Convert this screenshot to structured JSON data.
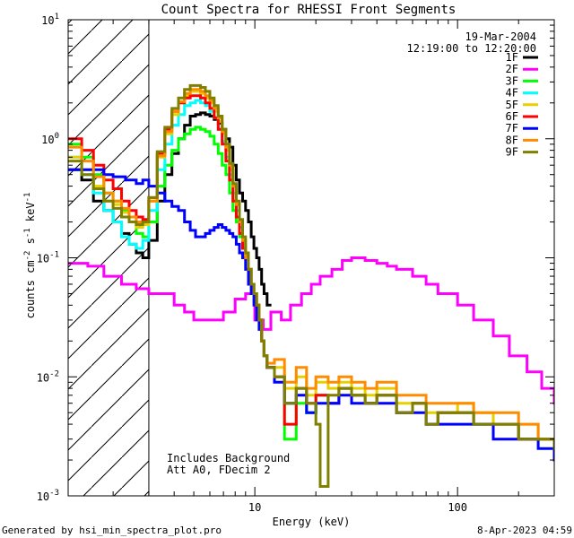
{
  "chart_data": {
    "type": "line",
    "title": "Count Spectra for RHESSI Front Segments",
    "xlabel": "Energy (keV)",
    "ylabel_parts": [
      "counts cm",
      "-2",
      " s",
      "-1",
      " keV",
      "-1"
    ],
    "x_scale": "log",
    "y_scale": "log",
    "xlim": [
      1.2,
      300
    ],
    "ylim": [
      0.001,
      10
    ],
    "x_ticks": [
      {
        "value": 10,
        "label": "10"
      },
      {
        "value": 100,
        "label": "100"
      }
    ],
    "y_ticks": [
      {
        "value": 0.001,
        "base": "10",
        "exp": "-3"
      },
      {
        "value": 0.01,
        "base": "10",
        "exp": "-2"
      },
      {
        "value": 0.1,
        "base": "10",
        "exp": "-1"
      },
      {
        "value": 1,
        "base": "10",
        "exp": "0"
      },
      {
        "value": 10,
        "base": "10",
        "exp": "1"
      }
    ],
    "attenuator_threshold_kev": 3.0,
    "date": "19-Mar-2004",
    "time_range": "12:19:00 to 12:20:00",
    "annotations": [
      "Includes Background",
      "Att A0, FDecim 2"
    ],
    "series": [
      {
        "name": "1F",
        "color": "#000000",
        "x": [
          1.2,
          1.4,
          1.6,
          1.8,
          2.0,
          2.2,
          2.4,
          2.6,
          2.8,
          3.0,
          3.3,
          3.6,
          3.9,
          4.2,
          4.5,
          4.8,
          5.1,
          5.4,
          5.7,
          6.0,
          6.3,
          6.6,
          6.9,
          7.2,
          7.5,
          7.8,
          8.1,
          8.4,
          8.7,
          9.0,
          9.3,
          9.6,
          9.9,
          10.2,
          10.5,
          10.8,
          11.1,
          11.5
        ],
        "y": [
          0.55,
          0.45,
          0.3,
          0.25,
          0.2,
          0.16,
          0.13,
          0.11,
          0.1,
          0.14,
          0.3,
          0.5,
          0.75,
          1.0,
          1.3,
          1.55,
          1.6,
          1.65,
          1.6,
          1.55,
          1.45,
          1.35,
          1.2,
          1.0,
          0.85,
          0.6,
          0.45,
          0.35,
          0.3,
          0.25,
          0.2,
          0.15,
          0.12,
          0.1,
          0.08,
          0.06,
          0.05,
          0.04
        ]
      },
      {
        "name": "2F",
        "color": "#ff00ff",
        "x": [
          1.2,
          1.5,
          1.8,
          2.2,
          2.6,
          3.0,
          3.5,
          4.0,
          4.5,
          5.0,
          5.6,
          6.3,
          7.0,
          8.0,
          9.0,
          10.0,
          11.0,
          12.0,
          13.5,
          15.0,
          17.0,
          19.0,
          21.0,
          24.0,
          27.0,
          30.0,
          35.0,
          40.0,
          45.0,
          50.0,
          60.0,
          70.0,
          80.0,
          100.0,
          120.0,
          150.0,
          180.0,
          220.0,
          260.0,
          300.0
        ],
        "y": [
          0.09,
          0.085,
          0.07,
          0.06,
          0.055,
          0.05,
          0.05,
          0.04,
          0.035,
          0.03,
          0.03,
          0.03,
          0.035,
          0.045,
          0.05,
          0.03,
          0.025,
          0.035,
          0.03,
          0.04,
          0.05,
          0.06,
          0.07,
          0.08,
          0.095,
          0.1,
          0.095,
          0.09,
          0.085,
          0.08,
          0.07,
          0.06,
          0.05,
          0.04,
          0.03,
          0.022,
          0.015,
          0.011,
          0.008,
          0.006
        ]
      },
      {
        "name": "3F",
        "color": "#00ff00",
        "x": [
          1.2,
          1.4,
          1.6,
          1.8,
          2.0,
          2.2,
          2.4,
          2.6,
          2.8,
          3.0,
          3.3,
          3.6,
          3.9,
          4.2,
          4.5,
          4.8,
          5.1,
          5.4,
          5.7,
          6.0,
          6.3,
          6.6,
          6.9,
          7.2,
          7.5,
          7.8,
          8.1,
          8.4,
          8.7,
          9.0,
          9.3,
          9.6,
          9.9,
          10.2,
          10.5,
          10.8,
          11.1,
          11.5,
          12.5,
          14.0,
          16.0,
          18.0,
          20.0,
          23.0,
          26.0,
          30.0,
          35.0,
          40.0,
          50.0,
          60.0,
          70.0,
          80.0,
          100.0,
          120.0,
          150.0,
          200.0,
          250.0,
          300.0
        ],
        "y": [
          0.9,
          0.7,
          0.5,
          0.35,
          0.3,
          0.25,
          0.2,
          0.16,
          0.15,
          0.2,
          0.4,
          0.6,
          0.8,
          1.0,
          1.1,
          1.2,
          1.25,
          1.2,
          1.15,
          1.05,
          0.9,
          0.75,
          0.6,
          0.5,
          0.35,
          0.25,
          0.2,
          0.15,
          0.12,
          0.1,
          0.08,
          0.06,
          0.05,
          0.04,
          0.03,
          0.02,
          0.015,
          0.012,
          0.01,
          0.003,
          0.006,
          0.005,
          0.007,
          0.006,
          0.008,
          0.007,
          0.006,
          0.007,
          0.005,
          0.006,
          0.004,
          0.005,
          0.005,
          0.004,
          0.004,
          0.003,
          0.003,
          0.0025
        ]
      },
      {
        "name": "4F",
        "color": "#00ffff",
        "x": [
          1.2,
          1.4,
          1.6,
          1.8,
          2.0,
          2.2,
          2.4,
          2.6,
          2.8,
          3.0,
          3.3,
          3.6,
          3.9,
          4.2,
          4.5,
          4.8,
          5.1,
          5.4,
          5.7,
          6.0,
          6.3,
          6.6,
          6.9,
          7.2,
          7.5,
          7.8,
          8.1,
          8.4,
          8.7,
          9.0,
          9.3,
          9.6,
          9.9,
          10.2,
          10.5,
          10.8,
          11.1,
          11.5,
          12.5,
          14.0,
          16.0,
          18.0,
          20.0,
          23.0,
          26.0,
          30.0,
          35.0,
          40.0,
          50.0,
          60.0,
          70.0,
          80.0,
          100.0,
          120.0,
          150.0,
          200.0,
          250.0,
          300.0
        ],
        "y": [
          0.7,
          0.5,
          0.35,
          0.25,
          0.2,
          0.15,
          0.13,
          0.12,
          0.14,
          0.25,
          0.55,
          0.9,
          1.3,
          1.6,
          1.9,
          2.0,
          2.1,
          2.0,
          1.9,
          1.7,
          1.5,
          1.2,
          0.95,
          0.7,
          0.5,
          0.35,
          0.25,
          0.18,
          0.13,
          0.1,
          0.08,
          0.06,
          0.05,
          0.04,
          0.03,
          0.02,
          0.015,
          0.012,
          0.01,
          0.006,
          0.008,
          0.005,
          0.007,
          0.006,
          0.008,
          0.007,
          0.006,
          0.007,
          0.005,
          0.006,
          0.004,
          0.005,
          0.005,
          0.004,
          0.004,
          0.003,
          0.003,
          0.0025
        ]
      },
      {
        "name": "5F",
        "color": "#e6d000",
        "x": [
          1.2,
          1.4,
          1.6,
          1.8,
          2.0,
          2.2,
          2.4,
          2.6,
          2.8,
          3.0,
          3.3,
          3.6,
          3.9,
          4.2,
          4.5,
          4.8,
          5.1,
          5.4,
          5.7,
          6.0,
          6.3,
          6.6,
          6.9,
          7.2,
          7.5,
          7.8,
          8.1,
          8.4,
          8.7,
          9.0,
          9.3,
          9.6,
          9.9,
          10.2,
          10.5,
          10.8,
          11.1,
          11.5,
          12.5,
          14.0,
          16.0,
          18.0,
          20.0,
          23.0,
          26.0,
          30.0,
          35.0,
          40.0,
          50.0,
          60.0,
          70.0,
          80.0,
          100.0,
          120.0,
          150.0,
          200.0,
          250.0,
          300.0
        ],
        "y": [
          0.7,
          0.55,
          0.4,
          0.3,
          0.28,
          0.24,
          0.2,
          0.18,
          0.19,
          0.3,
          0.7,
          1.1,
          1.6,
          2.0,
          2.3,
          2.5,
          2.5,
          2.4,
          2.2,
          2.0,
          1.7,
          1.4,
          1.1,
          0.8,
          0.55,
          0.4,
          0.28,
          0.2,
          0.14,
          0.1,
          0.08,
          0.06,
          0.05,
          0.04,
          0.03,
          0.02,
          0.015,
          0.012,
          0.012,
          0.008,
          0.01,
          0.007,
          0.009,
          0.008,
          0.009,
          0.008,
          0.007,
          0.008,
          0.006,
          0.006,
          0.005,
          0.005,
          0.006,
          0.005,
          0.004,
          0.004,
          0.003,
          0.003
        ]
      },
      {
        "name": "6F",
        "color": "#ff0000",
        "x": [
          1.2,
          1.4,
          1.6,
          1.8,
          2.0,
          2.2,
          2.4,
          2.6,
          2.8,
          3.0,
          3.3,
          3.6,
          3.9,
          4.2,
          4.5,
          4.8,
          5.1,
          5.4,
          5.7,
          6.0,
          6.3,
          6.6,
          6.9,
          7.2,
          7.5,
          7.8,
          8.1,
          8.4,
          8.7,
          9.0,
          9.3,
          9.6,
          9.9,
          10.2,
          10.5,
          10.8,
          11.1,
          11.5,
          12.5,
          14.0,
          16.0,
          18.0,
          20.0,
          23.0,
          26.0,
          30.0,
          35.0,
          40.0,
          50.0,
          60.0,
          70.0,
          80.0,
          100.0,
          120.0,
          150.0,
          200.0,
          250.0,
          300.0
        ],
        "y": [
          1.0,
          0.8,
          0.6,
          0.45,
          0.38,
          0.3,
          0.25,
          0.22,
          0.21,
          0.32,
          0.75,
          1.2,
          1.7,
          2.0,
          2.2,
          2.3,
          2.3,
          2.2,
          2.0,
          1.8,
          1.5,
          1.2,
          0.9,
          0.65,
          0.45,
          0.3,
          0.22,
          0.16,
          0.12,
          0.1,
          0.08,
          0.06,
          0.05,
          0.04,
          0.03,
          0.02,
          0.015,
          0.012,
          0.01,
          0.004,
          0.008,
          0.006,
          0.007,
          0.006,
          0.008,
          0.007,
          0.006,
          0.007,
          0.005,
          0.006,
          0.004,
          0.005,
          0.005,
          0.004,
          0.004,
          0.003,
          0.003,
          0.0025
        ]
      },
      {
        "name": "7F",
        "color": "#0000ff",
        "x": [
          1.2,
          1.5,
          1.8,
          2.0,
          2.3,
          2.6,
          2.8,
          3.0,
          3.3,
          3.6,
          3.9,
          4.2,
          4.5,
          4.8,
          5.1,
          5.4,
          5.7,
          6.0,
          6.3,
          6.6,
          6.9,
          7.2,
          7.5,
          7.8,
          8.1,
          8.4,
          8.7,
          9.0,
          9.3,
          9.6,
          9.9,
          10.2,
          10.5,
          10.8,
          11.1,
          11.5,
          12.5,
          14.0,
          16.0,
          18.0,
          20.0,
          23.0,
          26.0,
          30.0,
          35.0,
          40.0,
          50.0,
          60.0,
          70.0,
          80.0,
          100.0,
          120.0,
          150.0,
          200.0,
          250.0,
          300.0
        ],
        "y": [
          0.55,
          0.55,
          0.5,
          0.48,
          0.45,
          0.42,
          0.45,
          0.4,
          0.35,
          0.3,
          0.27,
          0.25,
          0.2,
          0.17,
          0.15,
          0.15,
          0.16,
          0.17,
          0.18,
          0.19,
          0.18,
          0.17,
          0.16,
          0.15,
          0.13,
          0.11,
          0.1,
          0.08,
          0.06,
          0.05,
          0.04,
          0.03,
          0.025,
          0.02,
          0.015,
          0.012,
          0.009,
          0.006,
          0.007,
          0.005,
          0.006,
          0.006,
          0.007,
          0.006,
          0.006,
          0.006,
          0.005,
          0.005,
          0.004,
          0.004,
          0.004,
          0.004,
          0.003,
          0.003,
          0.0025,
          0.002
        ]
      },
      {
        "name": "8F",
        "color": "#ff8c00",
        "x": [
          1.2,
          1.4,
          1.6,
          1.8,
          2.0,
          2.2,
          2.4,
          2.6,
          2.8,
          3.0,
          3.3,
          3.6,
          3.9,
          4.2,
          4.5,
          4.8,
          5.1,
          5.4,
          5.7,
          6.0,
          6.3,
          6.6,
          6.9,
          7.2,
          7.5,
          7.8,
          8.1,
          8.4,
          8.7,
          9.0,
          9.3,
          9.6,
          9.9,
          10.2,
          10.5,
          10.8,
          11.1,
          11.5,
          12.5,
          14.0,
          16.0,
          18.0,
          20.0,
          23.0,
          26.0,
          30.0,
          35.0,
          40.0,
          50.0,
          60.0,
          70.0,
          80.0,
          100.0,
          120.0,
          150.0,
          200.0,
          250.0,
          300.0
        ],
        "y": [
          0.85,
          0.65,
          0.48,
          0.35,
          0.3,
          0.26,
          0.22,
          0.2,
          0.2,
          0.3,
          0.72,
          1.15,
          1.7,
          2.05,
          2.4,
          2.6,
          2.6,
          2.5,
          2.3,
          2.1,
          1.8,
          1.5,
          1.15,
          0.85,
          0.6,
          0.4,
          0.28,
          0.2,
          0.14,
          0.1,
          0.08,
          0.06,
          0.05,
          0.04,
          0.03,
          0.02,
          0.015,
          0.013,
          0.014,
          0.009,
          0.012,
          0.008,
          0.01,
          0.009,
          0.01,
          0.009,
          0.008,
          0.009,
          0.007,
          0.007,
          0.006,
          0.006,
          0.006,
          0.005,
          0.005,
          0.004,
          0.003,
          0.003
        ]
      },
      {
        "name": "9F",
        "color": "#808000",
        "x": [
          1.2,
          1.4,
          1.6,
          1.8,
          2.0,
          2.2,
          2.4,
          2.6,
          2.8,
          3.0,
          3.3,
          3.6,
          3.9,
          4.2,
          4.5,
          4.8,
          5.1,
          5.4,
          5.7,
          6.0,
          6.3,
          6.6,
          6.9,
          7.2,
          7.5,
          7.8,
          8.1,
          8.4,
          8.7,
          9.0,
          9.3,
          9.6,
          9.9,
          10.2,
          10.5,
          10.8,
          11.1,
          11.5,
          12.5,
          14.0,
          16.0,
          18.0,
          20.0,
          21.0,
          23.0,
          26.0,
          30.0,
          35.0,
          40.0,
          50.0,
          60.0,
          70.0,
          80.0,
          100.0,
          120.0,
          150.0,
          200.0,
          250.0,
          300.0
        ],
        "y": [
          0.65,
          0.5,
          0.38,
          0.3,
          0.26,
          0.22,
          0.2,
          0.19,
          0.2,
          0.32,
          0.78,
          1.25,
          1.8,
          2.2,
          2.6,
          2.8,
          2.8,
          2.7,
          2.5,
          2.2,
          1.9,
          1.55,
          1.2,
          0.9,
          0.62,
          0.42,
          0.3,
          0.21,
          0.15,
          0.11,
          0.08,
          0.06,
          0.05,
          0.04,
          0.03,
          0.02,
          0.015,
          0.012,
          0.01,
          0.006,
          0.008,
          0.006,
          0.004,
          0.0012,
          0.007,
          0.008,
          0.007,
          0.006,
          0.007,
          0.005,
          0.006,
          0.004,
          0.005,
          0.005,
          0.004,
          0.004,
          0.003,
          0.003,
          0.0025
        ]
      }
    ]
  },
  "footer": {
    "generated_by": "Generated by hsi_min_spectra_plot.pro",
    "generated_on": "8-Apr-2023 04:59"
  }
}
